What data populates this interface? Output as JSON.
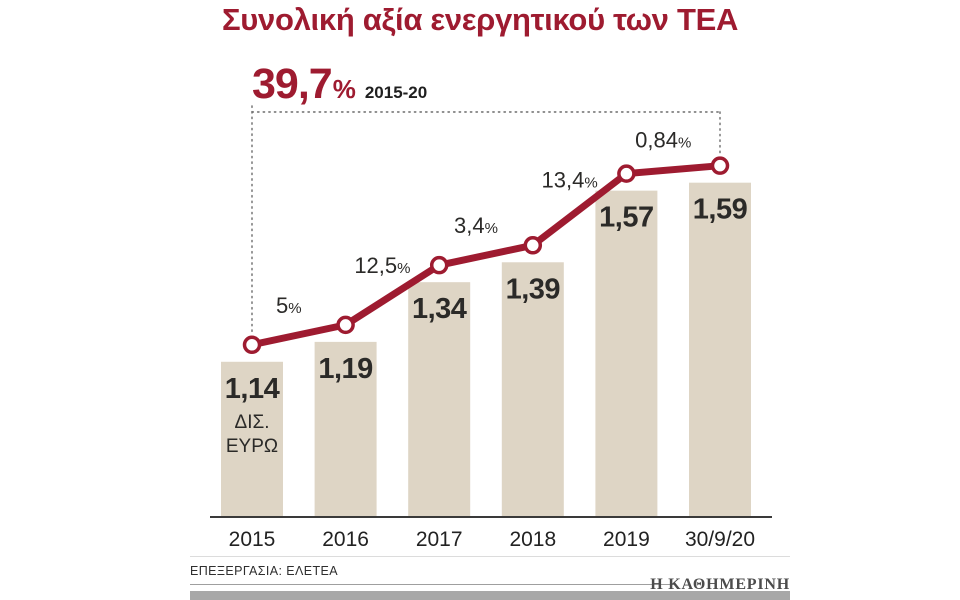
{
  "title": "Συνολική αξία ενεργητικού των ΤΕΑ",
  "highlight": {
    "value": "39,7",
    "percent_sign": "%",
    "period": "2015-20"
  },
  "chart_data": {
    "type": "bar",
    "title": "Συνολική αξία ενεργητικού των ΤΕΑ",
    "unit": "ΔΙΣ. ΕΥΡΩ",
    "categories": [
      "2015",
      "2016",
      "2017",
      "2018",
      "2019",
      "30/9/20"
    ],
    "values": [
      1.14,
      1.19,
      1.34,
      1.39,
      1.57,
      1.59
    ],
    "value_labels": [
      "1,14",
      "1,19",
      "1,34",
      "1,39",
      "1,57",
      "1,59"
    ],
    "unit_lines": [
      "ΔΙΣ.",
      "ΕΥΡΩ"
    ],
    "growth_labels": [
      "5%",
      "12,5%",
      "3,4%",
      "13,4%",
      "0,84%"
    ],
    "total_growth_label": "39,7%",
    "total_growth_period": "2015-20",
    "line_overlay": true,
    "ylim": [
      0.75,
      1.75
    ],
    "grid": false,
    "legend": false
  },
  "footer": {
    "source": "ΕΠΕΞΕΡΓΑΣΙΑ: ΕΛΕΤΕΑ",
    "brand": "Η ΚΑΘΗΜΕΡΙΝΗ"
  },
  "colors": {
    "accent": "#9e1b30",
    "bar": "#ded5c5",
    "text": "#2b2a28",
    "axis": "#3a3a3a",
    "guide": "#6b6b6b",
    "footer_bar": "#a8a8a8"
  }
}
